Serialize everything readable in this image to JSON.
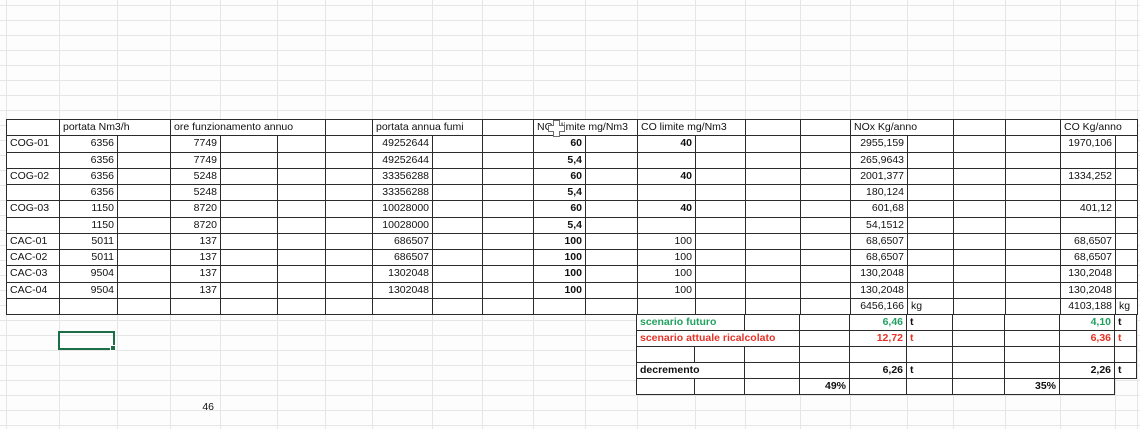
{
  "table": {
    "headers": {
      "portata": "portata Nm3/h",
      "ore": "ore funzionamento annuo",
      "fumi": "portata annua fumi",
      "nox_limite": "NOx limite mg/Nm3",
      "co_limite": "CO limite mg/Nm3",
      "nox_kg": "NOx Kg/anno",
      "co_kg": "CO Kg/anno"
    },
    "rows": [
      {
        "label": "COG-01",
        "portata": "6356",
        "ore": "7749",
        "fumi": "49252644",
        "nox_limite": "60",
        "co_limite": "40",
        "nox_kg": "2955,159",
        "co_kg": "1970,106"
      },
      {
        "label": "",
        "portata": "6356",
        "ore": "7749",
        "fumi": "49252644",
        "nox_limite": "5,4",
        "co_limite": "",
        "nox_kg": "265,9643",
        "co_kg": ""
      },
      {
        "label": "COG-02",
        "portata": "6356",
        "ore": "5248",
        "fumi": "33356288",
        "nox_limite": "60",
        "co_limite": "40",
        "nox_kg": "2001,377",
        "co_kg": "1334,252"
      },
      {
        "label": "",
        "portata": "6356",
        "ore": "5248",
        "fumi": "33356288",
        "nox_limite": "5,4",
        "co_limite": "",
        "nox_kg": "180,124",
        "co_kg": ""
      },
      {
        "label": "COG-03",
        "portata": "1150",
        "ore": "8720",
        "fumi": "10028000",
        "nox_limite": "60",
        "co_limite": "40",
        "nox_kg": "601,68",
        "co_kg": "401,12"
      },
      {
        "label": "",
        "portata": "1150",
        "ore": "8720",
        "fumi": "10028000",
        "nox_limite": "5,4",
        "co_limite": "",
        "nox_kg": "54,1512",
        "co_kg": ""
      },
      {
        "label": "CAC-01",
        "portata": "5011",
        "ore": "137",
        "fumi": "686507",
        "nox_limite": "100",
        "co_limite": "100",
        "nox_kg": "68,6507",
        "co_kg": "68,6507"
      },
      {
        "label": "CAC-02",
        "portata": "5011",
        "ore": "137",
        "fumi": "686507",
        "nox_limite": "100",
        "co_limite": "100",
        "nox_kg": "68,6507",
        "co_kg": "68,6507"
      },
      {
        "label": "CAC-03",
        "portata": "9504",
        "ore": "137",
        "fumi": "1302048",
        "nox_limite": "100",
        "co_limite": "100",
        "nox_kg": "130,2048",
        "co_kg": "130,2048"
      },
      {
        "label": "CAC-04",
        "portata": "9504",
        "ore": "137",
        "fumi": "1302048",
        "nox_limite": "100",
        "co_limite": "100",
        "nox_kg": "130,2048",
        "co_kg": "130,2048"
      }
    ],
    "totals": {
      "nox_kg": "6456,166",
      "nox_unit": "kg",
      "co_kg": "4103,188",
      "co_unit": "kg"
    }
  },
  "summary": {
    "rows": [
      {
        "label": "scenario futuro",
        "nox": "6,46",
        "nox_unit": "t",
        "co": "4,10",
        "co_unit": "t",
        "color": "green"
      },
      {
        "label": "scenario attuale ricalcolato",
        "nox": "12,72",
        "nox_unit": "t",
        "co": "6,36",
        "co_unit": "t",
        "color": "red"
      },
      {
        "label": "",
        "nox": "",
        "nox_unit": "",
        "co": "",
        "co_unit": "",
        "color": "black"
      },
      {
        "label": "decremento",
        "nox": "6,26",
        "nox_unit": "t",
        "co": "2,26",
        "co_unit": "t",
        "color": "black"
      },
      {
        "label": "",
        "nox": "49%",
        "nox_unit": "",
        "co": "35%",
        "co_unit": "",
        "color": "black"
      }
    ]
  },
  "stray_value": "46",
  "icons": {
    "cell_cursor": "excel-plus-cell-cursor"
  },
  "colors": {
    "green": "#21a15f",
    "red": "#e63226",
    "grid_border": "#2b2b2b",
    "faint_grid": "#e6e6e6",
    "selection": "#1c6e46"
  }
}
